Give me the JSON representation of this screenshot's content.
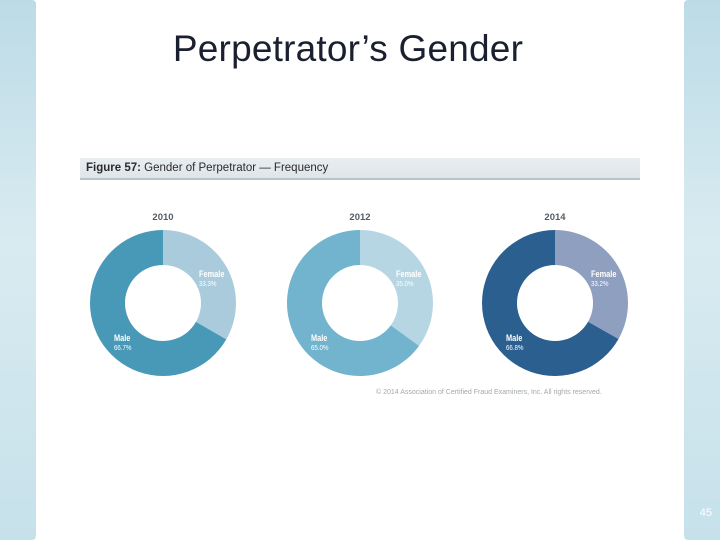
{
  "slide": {
    "title": "Perpetrator’s Gender",
    "page_number": "45"
  },
  "figure": {
    "label": "Figure 57:",
    "caption": "Gender of Perpetrator — Frequency",
    "copyright": "© 2014 Association of Certified Fraud Examiners, Inc. All rights reserved."
  },
  "chart_data": [
    {
      "type": "pie",
      "title": "2010",
      "categories": [
        "Female",
        "Male"
      ],
      "values": [
        33.3,
        66.7
      ],
      "value_labels": [
        "33.3%",
        "66.7%"
      ],
      "colors": [
        "#a9cbdb",
        "#4899b8"
      ]
    },
    {
      "type": "pie",
      "title": "2012",
      "categories": [
        "Female",
        "Male"
      ],
      "values": [
        35.0,
        65.0
      ],
      "value_labels": [
        "35.0%",
        "65.0%"
      ],
      "colors": [
        "#b7d6e3",
        "#72b3cd"
      ]
    },
    {
      "type": "pie",
      "title": "2014",
      "categories": [
        "Female",
        "Male"
      ],
      "values": [
        33.2,
        66.8
      ],
      "value_labels": [
        "33.2%",
        "66.8%"
      ],
      "colors": [
        "#8f9fc0",
        "#2a5f8f"
      ]
    }
  ]
}
